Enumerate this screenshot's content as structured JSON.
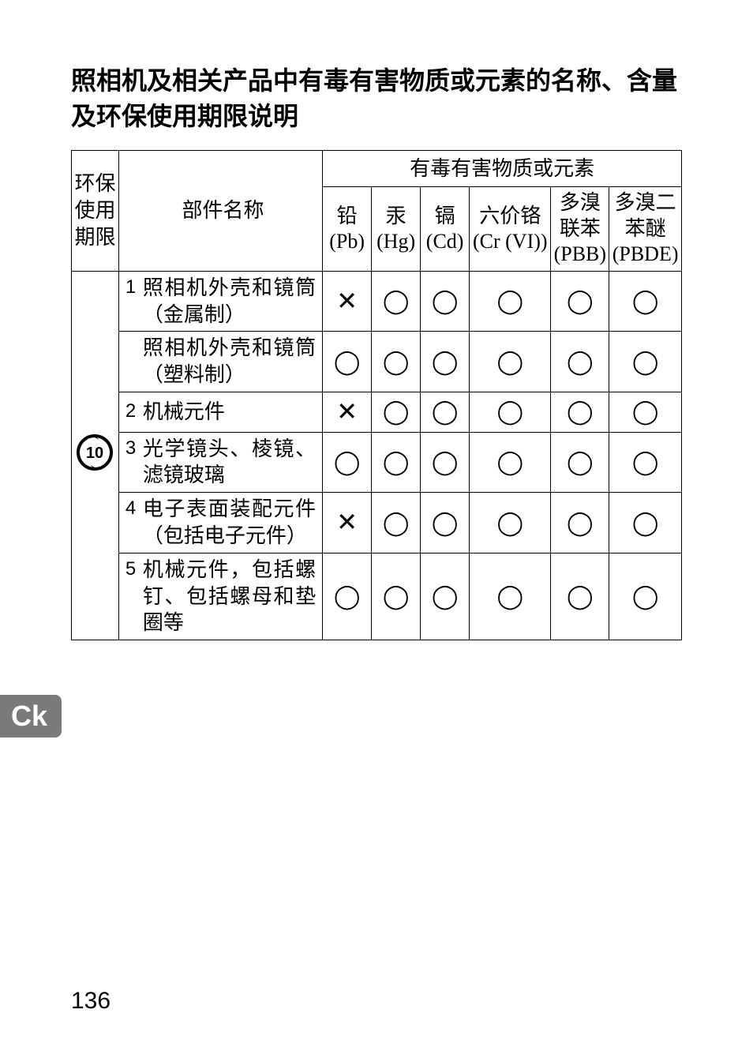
{
  "title": "照相机及相关产品中有毒有害物质或元素的名称、含量及环保使用期限说明",
  "headers": {
    "epup": "环保使用期限",
    "partName": "部件名称",
    "substancesGroup": "有毒有害物质或元素",
    "pb": "铅 (Pb)",
    "hg": "汞 (Hg)",
    "cd": "镉 (Cd)",
    "cr": "六价铬 (Cr (VI))",
    "pbb": "多溴联苯 (PBB)",
    "pbde": "多溴二苯醚 (PBDE)"
  },
  "epupYears": "10",
  "rows": [
    {
      "num": "1",
      "name": "照相机外壳和镜筒（金属制）",
      "pb": "×",
      "hg": "○",
      "cd": "○",
      "cr": "○",
      "pbb": "○",
      "pbde": "○"
    },
    {
      "num": "",
      "name": "照相机外壳和镜筒（塑料制）",
      "pb": "○",
      "hg": "○",
      "cd": "○",
      "cr": "○",
      "pbb": "○",
      "pbde": "○"
    },
    {
      "num": "2",
      "name": "机械元件",
      "pb": "×",
      "hg": "○",
      "cd": "○",
      "cr": "○",
      "pbb": "○",
      "pbde": "○"
    },
    {
      "num": "3",
      "name": "光学镜头、棱镜、滤镜玻璃",
      "pb": "○",
      "hg": "○",
      "cd": "○",
      "cr": "○",
      "pbb": "○",
      "pbde": "○"
    },
    {
      "num": "4",
      "name": "电子表面装配元件（包括电子元件）",
      "pb": "×",
      "hg": "○",
      "cd": "○",
      "cr": "○",
      "pbb": "○",
      "pbde": "○"
    },
    {
      "num": "5",
      "name": "机械元件，包括螺钉、包括螺母和垫圈等",
      "pb": "○",
      "hg": "○",
      "cd": "○",
      "cr": "○",
      "pbb": "○",
      "pbde": "○"
    }
  ],
  "markGlyphs": {
    "○": "◯",
    "×": "✕"
  },
  "langTab": "Ck",
  "pageNumber": "136",
  "colors": {
    "background": "#ffffff",
    "text": "#000000",
    "border": "#000000",
    "tabBg": "#7a7a7a",
    "tabText": "#ffffff"
  }
}
